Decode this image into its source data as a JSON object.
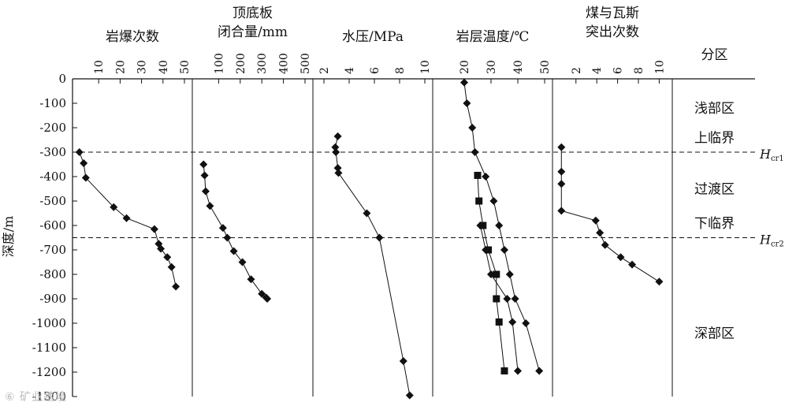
{
  "chart_data": {
    "type": "scatter",
    "y_axis": {
      "label": "深度/m",
      "ylim": [
        -1300,
        0
      ],
      "ticks": [
        0,
        -100,
        -200,
        -300,
        -400,
        -500,
        -600,
        -700,
        -800,
        -900,
        -1000,
        -1100,
        -1200,
        -1300
      ]
    },
    "panels": [
      {
        "id": "rockburst",
        "title_lines": [
          "岩爆次数"
        ],
        "xlim": [
          0,
          50
        ],
        "xticks": [
          10,
          20,
          30,
          40,
          50
        ],
        "series": [
          {
            "marker": "diamond",
            "points": [
              [
                1,
                -300
              ],
              [
                3,
                -345
              ],
              [
                4,
                -405
              ],
              [
                17,
                -525
              ],
              [
                23,
                -570
              ],
              [
                36,
                -615
              ],
              [
                38,
                -675
              ],
              [
                39,
                -695
              ],
              [
                42,
                -730
              ],
              [
                44,
                -770
              ],
              [
                46,
                -850
              ]
            ]
          }
        ]
      },
      {
        "id": "roof_convergence",
        "title_lines": [
          "顶底板",
          "闭合量/mm"
        ],
        "xlim": [
          0,
          500
        ],
        "xticks": [
          100,
          200,
          300,
          400,
          500
        ],
        "series": [
          {
            "marker": "diamond",
            "points": [
              [
                30,
                -350
              ],
              [
                35,
                -395
              ],
              [
                40,
                -460
              ],
              [
                60,
                -520
              ],
              [
                120,
                -610
              ],
              [
                140,
                -650
              ],
              [
                170,
                -705
              ],
              [
                210,
                -750
              ],
              [
                250,
                -820
              ],
              [
                300,
                -880
              ],
              [
                320,
                -895
              ],
              [
                325,
                -900
              ]
            ]
          }
        ]
      },
      {
        "id": "water_pressure",
        "title_lines": [
          "水压/MPa"
        ],
        "xlim": [
          1.5,
          10
        ],
        "xticks": [
          2,
          4,
          6,
          8,
          10
        ],
        "series": [
          {
            "marker": "diamond",
            "points": [
              [
                3.1,
                -235
              ],
              [
                2.9,
                -280
              ],
              [
                2.95,
                -300
              ],
              [
                3.1,
                -365
              ],
              [
                3.15,
                -385
              ],
              [
                5.4,
                -550
              ],
              [
                6.4,
                -650
              ],
              [
                8.3,
                -1155
              ],
              [
                8.8,
                -1295
              ]
            ]
          }
        ]
      },
      {
        "id": "rock_temperature",
        "title_lines": [
          "岩层温度/℃"
        ],
        "xlim": [
          10,
          50
        ],
        "xticks": [
          20,
          30,
          40,
          50
        ],
        "series": [
          {
            "marker": "diamond",
            "points": [
              [
                20,
                -15
              ],
              [
                21,
                -100
              ],
              [
                23,
                -200
              ],
              [
                24,
                -300
              ],
              [
                28,
                -400
              ],
              [
                31,
                -500
              ],
              [
                33,
                -600
              ],
              [
                35,
                -700
              ],
              [
                37,
                -800
              ],
              [
                39,
                -900
              ],
              [
                43,
                -1000
              ],
              [
                48,
                -1195
              ]
            ]
          },
          {
            "marker": "square",
            "points": [
              [
                25,
                -395
              ],
              [
                25.5,
                -500
              ],
              [
                27,
                -600
              ],
              [
                29,
                -700
              ],
              [
                32,
                -800
              ],
              [
                32,
                -900
              ],
              [
                33,
                -995
              ],
              [
                35,
                -1195
              ]
            ]
          },
          {
            "marker": "diamond",
            "points": [
              [
                26,
                -600
              ],
              [
                28,
                -700
              ],
              [
                30,
                -800
              ],
              [
                36,
                -900
              ],
              [
                38,
                -995
              ],
              [
                40,
                -1195
              ]
            ]
          }
        ]
      },
      {
        "id": "outburst",
        "title_lines": [
          "煤与瓦斯",
          "突出次数"
        ],
        "xlim": [
          0.2,
          10.5
        ],
        "xticks": [
          2,
          4,
          6,
          8,
          10
        ],
        "series": [
          {
            "marker": "diamond",
            "points": [
              [
                0.6,
                -280
              ],
              [
                0.6,
                -380
              ],
              [
                0.6,
                -430
              ],
              [
                0.6,
                -540
              ],
              [
                3.9,
                -580
              ],
              [
                4.3,
                -630
              ],
              [
                4.8,
                -680
              ],
              [
                6.3,
                -730
              ],
              [
                7.4,
                -760
              ],
              [
                10.0,
                -830
              ]
            ]
          }
        ]
      }
    ],
    "zone_column": {
      "title": "分区",
      "labels": [
        {
          "text": "浅部区",
          "depth": -120
        },
        {
          "text": "上临界",
          "depth": -240
        },
        {
          "text": "过渡区",
          "depth": -450
        },
        {
          "text": "下临界",
          "depth": -590
        },
        {
          "text": "深部区",
          "depth": -1040
        }
      ]
    },
    "thresholds": [
      {
        "depth": -300,
        "label_main": "H",
        "label_sub": "cr1"
      },
      {
        "depth": -650,
        "label_main": "H",
        "label_sub": "cr2"
      }
    ]
  },
  "watermark": "⑥ 矿业踏境"
}
